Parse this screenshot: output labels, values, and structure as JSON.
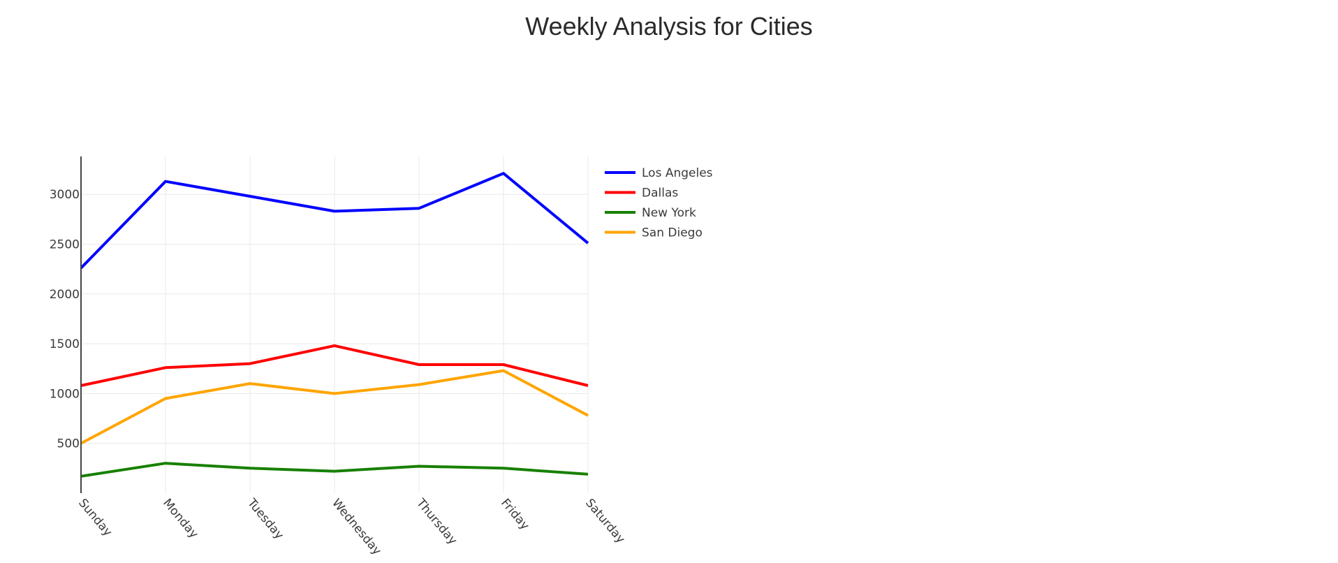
{
  "chart_data": {
    "type": "line",
    "title": "Weekly Analysis for Cities",
    "xlabel": "",
    "ylabel": "",
    "categories": [
      "Sunday",
      "Monday",
      "Tuesday",
      "Wednesday",
      "Thursday",
      "Friday",
      "Saturday"
    ],
    "y_ticks": [
      500,
      1000,
      1500,
      2000,
      2500,
      3000
    ],
    "ylim": [
      0,
      3380
    ],
    "grid": true,
    "legend_position": "top-right",
    "series": [
      {
        "name": "Los Angeles",
        "color": "#0000ff",
        "values": [
          2260,
          3130,
          2980,
          2830,
          2860,
          3210,
          2510
        ]
      },
      {
        "name": "Dallas",
        "color": "#ff0000",
        "values": [
          1080,
          1260,
          1300,
          1480,
          1290,
          1290,
          1080
        ]
      },
      {
        "name": "New York",
        "color": "#178000",
        "values": [
          170,
          300,
          250,
          220,
          270,
          250,
          190
        ]
      },
      {
        "name": "San Diego",
        "color": "#ffa500",
        "values": [
          500,
          950,
          1100,
          1000,
          1090,
          1230,
          780
        ]
      }
    ]
  }
}
